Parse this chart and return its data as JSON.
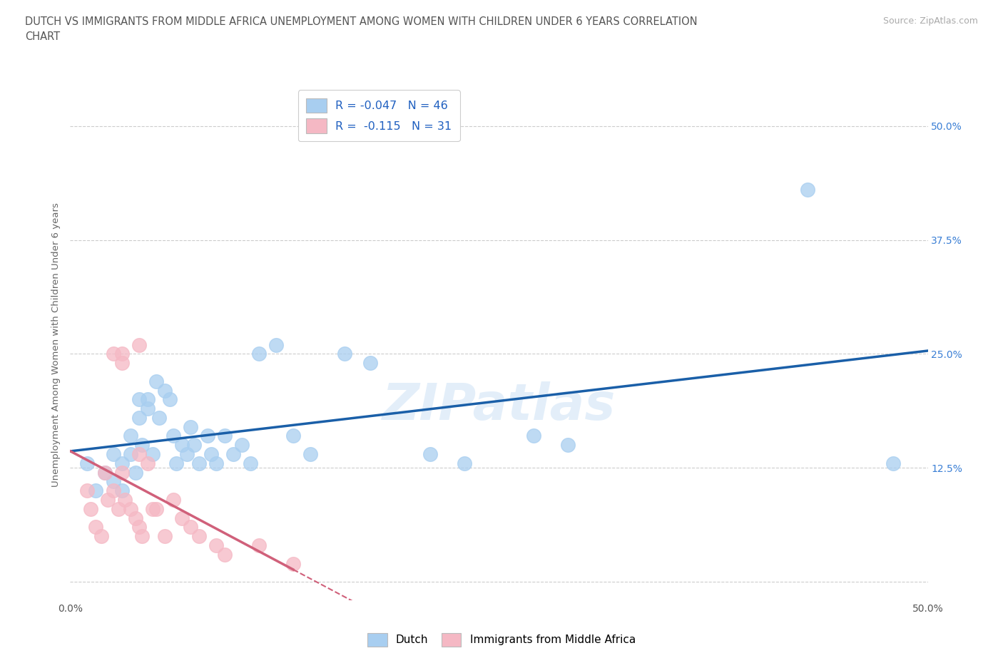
{
  "title": "DUTCH VS IMMIGRANTS FROM MIDDLE AFRICA UNEMPLOYMENT AMONG WOMEN WITH CHILDREN UNDER 6 YEARS CORRELATION\nCHART",
  "source": "Source: ZipAtlas.com",
  "ylabel": "Unemployment Among Women with Children Under 6 years",
  "xlim": [
    0.0,
    0.5
  ],
  "ylim": [
    -0.02,
    0.54
  ],
  "yticks": [
    0.0,
    0.125,
    0.25,
    0.375,
    0.5
  ],
  "ytick_labels": [
    "",
    "12.5%",
    "25.0%",
    "37.5%",
    "50.0%"
  ],
  "xticks": [
    0.0,
    0.125,
    0.25,
    0.375,
    0.5
  ],
  "xtick_labels": [
    "0.0%",
    "",
    "",
    "",
    "50.0%"
  ],
  "dutch_color": "#a8cef0",
  "immigrant_color": "#f5b8c4",
  "dutch_line_color": "#1a5fa8",
  "immigrant_line_color": "#d0607a",
  "watermark": "ZIPatlas",
  "legend_dutch_R": "-0.047",
  "legend_dutch_N": "46",
  "legend_immigrant_R": "-0.115",
  "legend_immigrant_N": "31",
  "dutch_x": [
    0.01,
    0.015,
    0.02,
    0.025,
    0.025,
    0.03,
    0.03,
    0.035,
    0.035,
    0.038,
    0.04,
    0.04,
    0.042,
    0.045,
    0.045,
    0.048,
    0.05,
    0.052,
    0.055,
    0.058,
    0.06,
    0.062,
    0.065,
    0.068,
    0.07,
    0.072,
    0.075,
    0.08,
    0.082,
    0.085,
    0.09,
    0.095,
    0.1,
    0.105,
    0.11,
    0.12,
    0.13,
    0.14,
    0.16,
    0.175,
    0.21,
    0.23,
    0.27,
    0.29,
    0.43,
    0.48
  ],
  "dutch_y": [
    0.13,
    0.1,
    0.12,
    0.14,
    0.11,
    0.13,
    0.1,
    0.16,
    0.14,
    0.12,
    0.2,
    0.18,
    0.15,
    0.2,
    0.19,
    0.14,
    0.22,
    0.18,
    0.21,
    0.2,
    0.16,
    0.13,
    0.15,
    0.14,
    0.17,
    0.15,
    0.13,
    0.16,
    0.14,
    0.13,
    0.16,
    0.14,
    0.15,
    0.13,
    0.25,
    0.26,
    0.16,
    0.14,
    0.25,
    0.24,
    0.14,
    0.13,
    0.16,
    0.15,
    0.43,
    0.13
  ],
  "immigrant_x": [
    0.01,
    0.012,
    0.015,
    0.018,
    0.02,
    0.022,
    0.025,
    0.025,
    0.028,
    0.03,
    0.03,
    0.03,
    0.032,
    0.035,
    0.038,
    0.04,
    0.04,
    0.04,
    0.042,
    0.045,
    0.048,
    0.05,
    0.055,
    0.06,
    0.065,
    0.07,
    0.075,
    0.085,
    0.09,
    0.11,
    0.13
  ],
  "immigrant_y": [
    0.1,
    0.08,
    0.06,
    0.05,
    0.12,
    0.09,
    0.25,
    0.1,
    0.08,
    0.25,
    0.24,
    0.12,
    0.09,
    0.08,
    0.07,
    0.26,
    0.14,
    0.06,
    0.05,
    0.13,
    0.08,
    0.08,
    0.05,
    0.09,
    0.07,
    0.06,
    0.05,
    0.04,
    0.03,
    0.04,
    0.02
  ]
}
